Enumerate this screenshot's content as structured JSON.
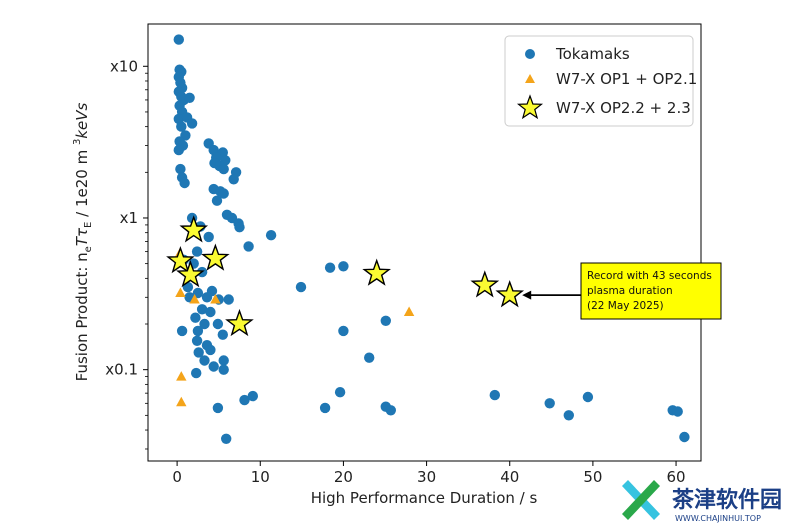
{
  "chart_data": {
    "type": "scatter",
    "xlabel": "High Performance Duration / s",
    "ylabel_parts": [
      "Fusion Product:  n",
      "e",
      "T",
      "τ",
      "E",
      " /  1e20 m  ",
      "3",
      "keVs"
    ],
    "xlim": [
      -3.5,
      63
    ],
    "ylim": [
      0.025,
      19
    ],
    "yscale": "log",
    "x_ticks": [
      0,
      10,
      20,
      30,
      40,
      50,
      60
    ],
    "x_tick_labels": [
      "0",
      "10",
      "20",
      "30",
      "40",
      "50",
      "60"
    ],
    "y_ticks": [
      0.1,
      1,
      10
    ],
    "y_tick_labels": [
      "x0.1",
      "x1",
      "x10"
    ],
    "legend_position": "top-right",
    "series": [
      {
        "name": "Tokamaks",
        "marker": "circle",
        "color": "#1f77b4",
        "points": [
          [
            0.2,
            15
          ],
          [
            0.3,
            9.5
          ],
          [
            0.5,
            9.2
          ],
          [
            0.2,
            8.5
          ],
          [
            0.4,
            7.8
          ],
          [
            0.6,
            7.2
          ],
          [
            0.2,
            6.8
          ],
          [
            0.5,
            6.3
          ],
          [
            0.8,
            6.0
          ],
          [
            0.3,
            5.5
          ],
          [
            1.5,
            6.2
          ],
          [
            0.6,
            5.0
          ],
          [
            0.2,
            4.5
          ],
          [
            1.2,
            4.6
          ],
          [
            1.8,
            4.2
          ],
          [
            0.5,
            4.0
          ],
          [
            1.0,
            3.5
          ],
          [
            0.3,
            3.2
          ],
          [
            0.7,
            3.0
          ],
          [
            0.2,
            2.8
          ],
          [
            3.8,
            3.1
          ],
          [
            4.4,
            2.8
          ],
          [
            5.5,
            2.7
          ],
          [
            5.8,
            2.4
          ],
          [
            4.7,
            2.5
          ],
          [
            4.5,
            2.3
          ],
          [
            5.1,
            2.2
          ],
          [
            5.6,
            2.1
          ],
          [
            7.1,
            2.0
          ],
          [
            6.8,
            1.8
          ],
          [
            0.4,
            2.1
          ],
          [
            0.6,
            1.85
          ],
          [
            0.9,
            1.7
          ],
          [
            4.4,
            1.55
          ],
          [
            5.2,
            1.5
          ],
          [
            4.8,
            1.3
          ],
          [
            5.6,
            1.45
          ],
          [
            6.0,
            1.05
          ],
          [
            6.6,
            1.0
          ],
          [
            7.4,
            0.92
          ],
          [
            7.5,
            0.87
          ],
          [
            1.8,
            1.0
          ],
          [
            2.8,
            0.88
          ],
          [
            3.8,
            0.75
          ],
          [
            8.6,
            0.65
          ],
          [
            11.3,
            0.77
          ],
          [
            2.4,
            0.6
          ],
          [
            0.8,
            0.53
          ],
          [
            2.0,
            0.5
          ],
          [
            3.0,
            0.44
          ],
          [
            1.3,
            0.35
          ],
          [
            1.5,
            0.3
          ],
          [
            2.5,
            0.32
          ],
          [
            3.6,
            0.3
          ],
          [
            4.2,
            0.33
          ],
          [
            5.0,
            0.29
          ],
          [
            6.2,
            0.29
          ],
          [
            2.2,
            0.22
          ],
          [
            3.0,
            0.25
          ],
          [
            4.0,
            0.24
          ],
          [
            3.3,
            0.2
          ],
          [
            2.5,
            0.18
          ],
          [
            4.9,
            0.2
          ],
          [
            5.5,
            0.17
          ],
          [
            0.6,
            0.18
          ],
          [
            2.4,
            0.155
          ],
          [
            3.6,
            0.145
          ],
          [
            4.0,
            0.135
          ],
          [
            2.6,
            0.13
          ],
          [
            3.3,
            0.115
          ],
          [
            5.6,
            0.115
          ],
          [
            4.4,
            0.105
          ],
          [
            5.6,
            0.1
          ],
          [
            2.3,
            0.095
          ],
          [
            14.9,
            0.35
          ],
          [
            18.4,
            0.47
          ],
          [
            20.0,
            0.48
          ],
          [
            20.0,
            0.18
          ],
          [
            25.1,
            0.21
          ],
          [
            23.1,
            0.12
          ],
          [
            8.1,
            0.063
          ],
          [
            9.1,
            0.067
          ],
          [
            4.9,
            0.056
          ],
          [
            5.9,
            0.035
          ],
          [
            17.8,
            0.056
          ],
          [
            19.6,
            0.071
          ],
          [
            25.1,
            0.057
          ],
          [
            25.7,
            0.054
          ],
          [
            38.2,
            0.068
          ],
          [
            44.8,
            0.06
          ],
          [
            47.1,
            0.05
          ],
          [
            49.4,
            0.066
          ],
          [
            59.6,
            0.054
          ],
          [
            60.2,
            0.053
          ],
          [
            61.0,
            0.036
          ]
        ]
      },
      {
        "name": "W7-X OP1 + OP2.1",
        "marker": "triangle",
        "color": "#f4a41a",
        "points": [
          [
            0.3,
            0.58
          ],
          [
            0.4,
            0.32
          ],
          [
            2.1,
            0.29
          ],
          [
            4.6,
            0.29
          ],
          [
            0.5,
            0.09
          ],
          [
            0.5,
            0.061
          ],
          [
            27.9,
            0.24
          ]
        ]
      },
      {
        "name": "W7-X OP2.2 + 2.3",
        "marker": "star",
        "color": "#fafa32",
        "points": [
          [
            2.0,
            0.83
          ],
          [
            0.4,
            0.52
          ],
          [
            4.6,
            0.54
          ],
          [
            1.6,
            0.42
          ],
          [
            7.5,
            0.2
          ],
          [
            24.0,
            0.43
          ],
          [
            37.0,
            0.36
          ],
          [
            40.0,
            0.31
          ]
        ]
      }
    ],
    "annotation": {
      "lines": [
        "Record with 43 seconds",
        "plasma duration",
        "(22 May 2025)"
      ],
      "box_color": "#ffff00",
      "arrow_to": [
        41.5,
        0.31
      ]
    }
  },
  "watermark": {
    "text": "茶津软件园",
    "url": "WWW.CHAJINHUI.TOP"
  }
}
